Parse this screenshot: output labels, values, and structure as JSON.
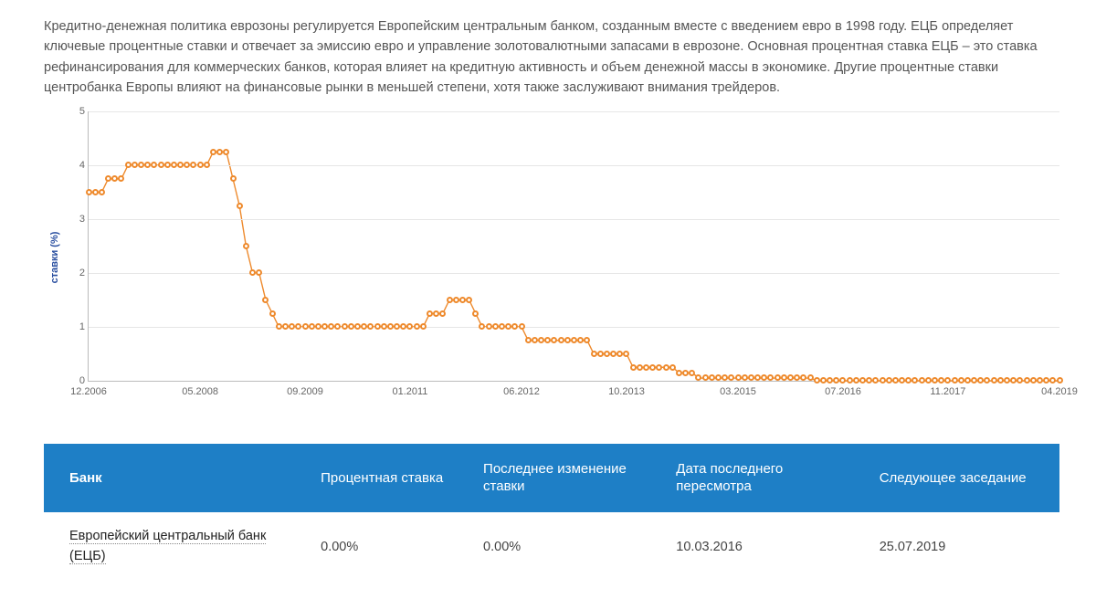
{
  "intro_text": "Кредитно-денежная политика еврозоны регулируется Европейским центральным банком, созданным вместе с введением евро в 1998 году. ЕЦБ определяет ключевые процентные ставки и отвечает за эмиссию евро и управление золотовалютными запасами в еврозоне. Основная процентная ставка ЕЦБ – это ставка рефинансирования для коммерческих банков, которая влияет на кредитную активность и объем денежной массы в экономике. Другие процентные ставки центробанка Европы влияют на финансовые рынки в меньшей степени, хотя также заслуживают внимания трейдеров.",
  "chart": {
    "type": "line-scatter",
    "ylabel": "ставки (%)",
    "ylim": [
      0,
      5
    ],
    "ytick_step": 1,
    "x_range_months": [
      0,
      148
    ],
    "xticks": [
      {
        "pos": 0,
        "label": "12.2006"
      },
      {
        "pos": 17,
        "label": "05.2008"
      },
      {
        "pos": 33,
        "label": "09.2009"
      },
      {
        "pos": 49,
        "label": "01.2011"
      },
      {
        "pos": 66,
        "label": "06.2012"
      },
      {
        "pos": 82,
        "label": "10.2013"
      },
      {
        "pos": 99,
        "label": "03.2015"
      },
      {
        "pos": 115,
        "label": "07.2016"
      },
      {
        "pos": 131,
        "label": "11.2017"
      },
      {
        "pos": 148,
        "label": "04.2019"
      }
    ],
    "series_color": "#ee8a2d",
    "marker_fill": "#ffffff",
    "marker_stroke": "#ee8a2d",
    "marker_stroke_width": 2,
    "marker_radius": 3.5,
    "line_width": 1.4,
    "grid_color": "#e6e6e6",
    "axis_color": "#bbbbbb",
    "tick_font_color": "#666666",
    "ylabel_color": "#2a4fa0",
    "points": [
      {
        "x": 0,
        "y": 3.5
      },
      {
        "x": 1,
        "y": 3.5
      },
      {
        "x": 2,
        "y": 3.5
      },
      {
        "x": 3,
        "y": 3.75
      },
      {
        "x": 4,
        "y": 3.75
      },
      {
        "x": 5,
        "y": 3.75
      },
      {
        "x": 6,
        "y": 4.0
      },
      {
        "x": 7,
        "y": 4.0
      },
      {
        "x": 8,
        "y": 4.0
      },
      {
        "x": 9,
        "y": 4.0
      },
      {
        "x": 10,
        "y": 4.0
      },
      {
        "x": 11,
        "y": 4.0
      },
      {
        "x": 12,
        "y": 4.0
      },
      {
        "x": 13,
        "y": 4.0
      },
      {
        "x": 14,
        "y": 4.0
      },
      {
        "x": 15,
        "y": 4.0
      },
      {
        "x": 16,
        "y": 4.0
      },
      {
        "x": 17,
        "y": 4.0
      },
      {
        "x": 18,
        "y": 4.0
      },
      {
        "x": 19,
        "y": 4.25
      },
      {
        "x": 20,
        "y": 4.25
      },
      {
        "x": 21,
        "y": 4.25
      },
      {
        "x": 22,
        "y": 3.75
      },
      {
        "x": 23,
        "y": 3.25
      },
      {
        "x": 24,
        "y": 2.5
      },
      {
        "x": 25,
        "y": 2.0
      },
      {
        "x": 26,
        "y": 2.0
      },
      {
        "x": 27,
        "y": 1.5
      },
      {
        "x": 28,
        "y": 1.25
      },
      {
        "x": 29,
        "y": 1.0
      },
      {
        "x": 30,
        "y": 1.0
      },
      {
        "x": 31,
        "y": 1.0
      },
      {
        "x": 32,
        "y": 1.0
      },
      {
        "x": 33,
        "y": 1.0
      },
      {
        "x": 34,
        "y": 1.0
      },
      {
        "x": 35,
        "y": 1.0
      },
      {
        "x": 36,
        "y": 1.0
      },
      {
        "x": 37,
        "y": 1.0
      },
      {
        "x": 38,
        "y": 1.0
      },
      {
        "x": 39,
        "y": 1.0
      },
      {
        "x": 40,
        "y": 1.0
      },
      {
        "x": 41,
        "y": 1.0
      },
      {
        "x": 42,
        "y": 1.0
      },
      {
        "x": 43,
        "y": 1.0
      },
      {
        "x": 44,
        "y": 1.0
      },
      {
        "x": 45,
        "y": 1.0
      },
      {
        "x": 46,
        "y": 1.0
      },
      {
        "x": 47,
        "y": 1.0
      },
      {
        "x": 48,
        "y": 1.0
      },
      {
        "x": 49,
        "y": 1.0
      },
      {
        "x": 50,
        "y": 1.0
      },
      {
        "x": 51,
        "y": 1.0
      },
      {
        "x": 52,
        "y": 1.25
      },
      {
        "x": 53,
        "y": 1.25
      },
      {
        "x": 54,
        "y": 1.25
      },
      {
        "x": 55,
        "y": 1.5
      },
      {
        "x": 56,
        "y": 1.5
      },
      {
        "x": 57,
        "y": 1.5
      },
      {
        "x": 58,
        "y": 1.5
      },
      {
        "x": 59,
        "y": 1.25
      },
      {
        "x": 60,
        "y": 1.0
      },
      {
        "x": 61,
        "y": 1.0
      },
      {
        "x": 62,
        "y": 1.0
      },
      {
        "x": 63,
        "y": 1.0
      },
      {
        "x": 64,
        "y": 1.0
      },
      {
        "x": 65,
        "y": 1.0
      },
      {
        "x": 66,
        "y": 1.0
      },
      {
        "x": 67,
        "y": 0.75
      },
      {
        "x": 68,
        "y": 0.75
      },
      {
        "x": 69,
        "y": 0.75
      },
      {
        "x": 70,
        "y": 0.75
      },
      {
        "x": 71,
        "y": 0.75
      },
      {
        "x": 72,
        "y": 0.75
      },
      {
        "x": 73,
        "y": 0.75
      },
      {
        "x": 74,
        "y": 0.75
      },
      {
        "x": 75,
        "y": 0.75
      },
      {
        "x": 76,
        "y": 0.75
      },
      {
        "x": 77,
        "y": 0.5
      },
      {
        "x": 78,
        "y": 0.5
      },
      {
        "x": 79,
        "y": 0.5
      },
      {
        "x": 80,
        "y": 0.5
      },
      {
        "x": 81,
        "y": 0.5
      },
      {
        "x": 82,
        "y": 0.5
      },
      {
        "x": 83,
        "y": 0.25
      },
      {
        "x": 84,
        "y": 0.25
      },
      {
        "x": 85,
        "y": 0.25
      },
      {
        "x": 86,
        "y": 0.25
      },
      {
        "x": 87,
        "y": 0.25
      },
      {
        "x": 88,
        "y": 0.25
      },
      {
        "x": 89,
        "y": 0.25
      },
      {
        "x": 90,
        "y": 0.15
      },
      {
        "x": 91,
        "y": 0.15
      },
      {
        "x": 92,
        "y": 0.15
      },
      {
        "x": 93,
        "y": 0.05
      },
      {
        "x": 94,
        "y": 0.05
      },
      {
        "x": 95,
        "y": 0.05
      },
      {
        "x": 96,
        "y": 0.05
      },
      {
        "x": 97,
        "y": 0.05
      },
      {
        "x": 98,
        "y": 0.05
      },
      {
        "x": 99,
        "y": 0.05
      },
      {
        "x": 100,
        "y": 0.05
      },
      {
        "x": 101,
        "y": 0.05
      },
      {
        "x": 102,
        "y": 0.05
      },
      {
        "x": 103,
        "y": 0.05
      },
      {
        "x": 104,
        "y": 0.05
      },
      {
        "x": 105,
        "y": 0.05
      },
      {
        "x": 106,
        "y": 0.05
      },
      {
        "x": 107,
        "y": 0.05
      },
      {
        "x": 108,
        "y": 0.05
      },
      {
        "x": 109,
        "y": 0.05
      },
      {
        "x": 110,
        "y": 0.05
      },
      {
        "x": 111,
        "y": 0.0
      },
      {
        "x": 112,
        "y": 0.0
      },
      {
        "x": 113,
        "y": 0.0
      },
      {
        "x": 114,
        "y": 0.0
      },
      {
        "x": 115,
        "y": 0.0
      },
      {
        "x": 116,
        "y": 0.0
      },
      {
        "x": 117,
        "y": 0.0
      },
      {
        "x": 118,
        "y": 0.0
      },
      {
        "x": 119,
        "y": 0.0
      },
      {
        "x": 120,
        "y": 0.0
      },
      {
        "x": 121,
        "y": 0.0
      },
      {
        "x": 122,
        "y": 0.0
      },
      {
        "x": 123,
        "y": 0.0
      },
      {
        "x": 124,
        "y": 0.0
      },
      {
        "x": 125,
        "y": 0.0
      },
      {
        "x": 126,
        "y": 0.0
      },
      {
        "x": 127,
        "y": 0.0
      },
      {
        "x": 128,
        "y": 0.0
      },
      {
        "x": 129,
        "y": 0.0
      },
      {
        "x": 130,
        "y": 0.0
      },
      {
        "x": 131,
        "y": 0.0
      },
      {
        "x": 132,
        "y": 0.0
      },
      {
        "x": 133,
        "y": 0.0
      },
      {
        "x": 134,
        "y": 0.0
      },
      {
        "x": 135,
        "y": 0.0
      },
      {
        "x": 136,
        "y": 0.0
      },
      {
        "x": 137,
        "y": 0.0
      },
      {
        "x": 138,
        "y": 0.0
      },
      {
        "x": 139,
        "y": 0.0
      },
      {
        "x": 140,
        "y": 0.0
      },
      {
        "x": 141,
        "y": 0.0
      },
      {
        "x": 142,
        "y": 0.0
      },
      {
        "x": 143,
        "y": 0.0
      },
      {
        "x": 144,
        "y": 0.0
      },
      {
        "x": 145,
        "y": 0.0
      },
      {
        "x": 146,
        "y": 0.0
      },
      {
        "x": 147,
        "y": 0.0
      },
      {
        "x": 148,
        "y": 0.0
      }
    ]
  },
  "table": {
    "header_bg": "#1e7fc6",
    "header_fg": "#ffffff",
    "columns": [
      "Банк",
      "Процентная ставка",
      "Последнее изменение ставки",
      "Дата последнего пересмотра",
      "Следующее заседание"
    ],
    "col_widths": [
      "26%",
      "16%",
      "19%",
      "20%",
      "19%"
    ],
    "rows": [
      {
        "bank": "Европейский центральный банк (ЕЦБ)",
        "rate": "0.00%",
        "last_change": "0.00%",
        "last_review": "10.03.2016",
        "next_meeting": "25.07.2019"
      }
    ]
  }
}
